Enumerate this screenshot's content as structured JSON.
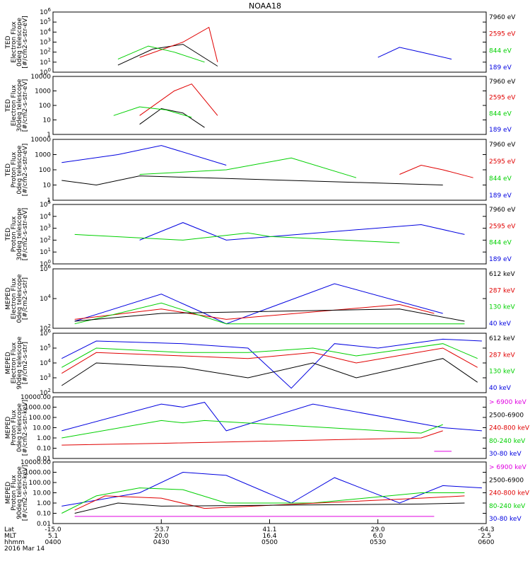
{
  "title": "NOAA18",
  "colors": {
    "black": "#000000",
    "red": "#e00000",
    "green": "#00d000",
    "blue": "#0000e0",
    "magenta": "#e000e0"
  },
  "chart_data": [
    {
      "type": "line",
      "ylabel": [
        "TED",
        "Electron Flux",
        "0deg telescope",
        "[#/cm2-s-str-eV]"
      ],
      "log_scale": true,
      "ylim": [
        1,
        1000000
      ],
      "yticks": [
        "10^0",
        "10^1",
        "10^2",
        "10^3",
        "10^4",
        "10^5",
        "10^6"
      ],
      "legend": [
        {
          "label": "7960 eV",
          "color": "black"
        },
        {
          "label": "2595 eV",
          "color": "red"
        },
        {
          "label": "844 eV",
          "color": "green"
        },
        {
          "label": "189 eV",
          "color": "blue"
        }
      ],
      "series": [
        {
          "color": "black",
          "x": [
            15,
            23,
            30,
            38
          ],
          "y": [
            5,
            200,
            600,
            4
          ]
        },
        {
          "color": "red",
          "x": [
            20,
            30,
            36,
            38
          ],
          "y": [
            30,
            1000,
            30000,
            10
          ]
        },
        {
          "color": "green",
          "x": [
            15,
            22,
            28,
            35
          ],
          "y": [
            20,
            400,
            100,
            10
          ]
        },
        {
          "color": "blue",
          "x": [
            75,
            80,
            85,
            92
          ],
          "y": [
            30,
            300,
            100,
            20
          ]
        }
      ]
    },
    {
      "type": "line",
      "ylabel": [
        "TED",
        "Electron Flux",
        "30deg telescope",
        "[#/cm2-s-str-eV]"
      ],
      "log_scale": true,
      "ylim": [
        1,
        10000
      ],
      "yticks": [
        "1",
        "10",
        "100",
        "1000",
        "10000"
      ],
      "legend": [
        {
          "label": "7960 eV",
          "color": "black"
        },
        {
          "label": "2595 eV",
          "color": "red"
        },
        {
          "label": "844 eV",
          "color": "green"
        },
        {
          "label": "189 eV",
          "color": "blue"
        }
      ],
      "series": [
        {
          "color": "black",
          "x": [
            20,
            25,
            30,
            35
          ],
          "y": [
            5,
            60,
            30,
            3
          ]
        },
        {
          "color": "red",
          "x": [
            20,
            28,
            32,
            38
          ],
          "y": [
            20,
            1000,
            3000,
            20
          ]
        },
        {
          "color": "green",
          "x": [
            14,
            20,
            26,
            32
          ],
          "y": [
            20,
            80,
            50,
            15
          ]
        }
      ]
    },
    {
      "type": "line",
      "ylabel": [
        "TED",
        "Proton Flux",
        "0deg telescope",
        "[#/cm2-s-str-eV]"
      ],
      "log_scale": true,
      "ylim": [
        1,
        10000
      ],
      "yticks": [
        "1",
        "10",
        "100",
        "1000",
        "10000"
      ],
      "legend": [
        {
          "label": "7960 eV",
          "color": "black"
        },
        {
          "label": "2595 eV",
          "color": "red"
        },
        {
          "label": "844 eV",
          "color": "green"
        },
        {
          "label": "189 eV",
          "color": "blue"
        }
      ],
      "series": [
        {
          "color": "blue",
          "x": [
            2,
            15,
            25,
            40
          ],
          "y": [
            300,
            1000,
            4000,
            200
          ]
        },
        {
          "color": "green",
          "x": [
            20,
            40,
            55,
            70
          ],
          "y": [
            50,
            100,
            600,
            30
          ]
        },
        {
          "color": "red",
          "x": [
            80,
            85,
            90,
            97
          ],
          "y": [
            50,
            200,
            100,
            30
          ]
        },
        {
          "color": "black",
          "x": [
            2,
            10,
            20,
            90
          ],
          "y": [
            20,
            10,
            40,
            10
          ]
        }
      ]
    },
    {
      "type": "line",
      "ylabel": [
        "TED",
        "Proton Flux",
        "30deg telescope",
        "[#/cm2-s-str-eV]"
      ],
      "log_scale": true,
      "ylim": [
        1,
        100000
      ],
      "yticks": [
        "10^0",
        "10^1",
        "10^2",
        "10^3",
        "10^4",
        "10^5"
      ],
      "legend": [
        {
          "label": "7960 eV",
          "color": "black"
        },
        {
          "label": "2595 eV",
          "color": "red"
        },
        {
          "label": "844 eV",
          "color": "green"
        },
        {
          "label": "189 eV",
          "color": "blue"
        }
      ],
      "series": [
        {
          "color": "blue",
          "x": [
            20,
            30,
            40,
            85,
            95
          ],
          "y": [
            100,
            3000,
            100,
            2000,
            300
          ]
        },
        {
          "color": "green",
          "x": [
            5,
            30,
            45,
            50,
            80
          ],
          "y": [
            300,
            100,
            400,
            200,
            60
          ]
        }
      ]
    },
    {
      "type": "line",
      "ylabel": [
        "MEPED",
        "Electron Flux",
        "0deg telescope",
        "[#/cm2-s-str]"
      ],
      "log_scale": true,
      "ylim": [
        100,
        1000000
      ],
      "yticks": [
        "10^2",
        "10^4",
        "10^6"
      ],
      "legend": [
        {
          "label": "612 keV",
          "color": "black"
        },
        {
          "label": "287 keV",
          "color": "red"
        },
        {
          "label": "130 keV",
          "color": "green"
        },
        {
          "label": "40 keV",
          "color": "blue"
        }
      ],
      "series": [
        {
          "color": "blue",
          "x": [
            5,
            25,
            35,
            40,
            65,
            90
          ],
          "y": [
            300,
            20000,
            1000,
            200,
            100000,
            1000
          ]
        },
        {
          "color": "red",
          "x": [
            5,
            25,
            40,
            80,
            88
          ],
          "y": [
            400,
            2000,
            400,
            4000,
            1000
          ]
        },
        {
          "color": "green",
          "x": [
            5,
            25,
            40,
            95
          ],
          "y": [
            200,
            5000,
            200,
            200
          ]
        },
        {
          "color": "black",
          "x": [
            5,
            25,
            80,
            95
          ],
          "y": [
            300,
            1000,
            2000,
            300
          ]
        }
      ]
    },
    {
      "type": "line",
      "ylabel": [
        "MEPED",
        "Electron Flux",
        "90deg telescope",
        "[#/cm2-s-str]"
      ],
      "log_scale": true,
      "ylim": [
        100,
        1000000
      ],
      "yticks": [
        "10^2",
        "10^3",
        "10^4",
        "10^5",
        "10^6"
      ],
      "legend": [
        {
          "label": "612 keV",
          "color": "black"
        },
        {
          "label": "287 keV",
          "color": "red"
        },
        {
          "label": "130 keV",
          "color": "green"
        },
        {
          "label": "40 keV",
          "color": "blue"
        }
      ],
      "series": [
        {
          "color": "blue",
          "x": [
            2,
            10,
            30,
            45,
            55,
            65,
            75,
            90,
            99
          ],
          "y": [
            20000,
            300000,
            200000,
            100000,
            200,
            200000,
            100000,
            400000,
            300000
          ]
        },
        {
          "color": "green",
          "x": [
            2,
            10,
            30,
            45,
            60,
            70,
            90,
            98
          ],
          "y": [
            5000,
            100000,
            50000,
            50000,
            100000,
            30000,
            200000,
            20000
          ]
        },
        {
          "color": "red",
          "x": [
            2,
            10,
            30,
            45,
            60,
            70,
            90,
            98
          ],
          "y": [
            2000,
            50000,
            30000,
            20000,
            50000,
            10000,
            100000,
            5000
          ]
        },
        {
          "color": "black",
          "x": [
            2,
            10,
            30,
            45,
            60,
            70,
            90,
            98
          ],
          "y": [
            300,
            10000,
            5000,
            1000,
            10000,
            1000,
            20000,
            500
          ]
        }
      ]
    },
    {
      "type": "line",
      "ylabel": [
        "MEPED",
        "Proton Flux",
        "0deg telescope",
        "[#/cm2-s-str-keV]"
      ],
      "log_scale": true,
      "ylim": [
        0.01,
        10000
      ],
      "yticks": [
        "0.01",
        "0.10",
        "1.00",
        "10.00",
        "100.00",
        "1000.00",
        "10000.00"
      ],
      "legend": [
        {
          "label": "> 6900 keV",
          "color": "magenta"
        },
        {
          "label": "2500-6900",
          "color": "black"
        },
        {
          "label": "240-800 keV",
          "color": "red"
        },
        {
          "label": "80-240 keV",
          "color": "green"
        },
        {
          "label": "30-80 keV",
          "color": "blue"
        }
      ],
      "series": [
        {
          "color": "blue",
          "x": [
            2,
            25,
            30,
            35,
            40,
            60,
            90,
            99
          ],
          "y": [
            5,
            2000,
            1000,
            3000,
            5,
            2000,
            10,
            5
          ]
        },
        {
          "color": "green",
          "x": [
            2,
            25,
            30,
            35,
            85,
            90
          ],
          "y": [
            1,
            50,
            30,
            50,
            3,
            20
          ]
        },
        {
          "color": "red",
          "x": [
            2,
            25,
            85,
            90
          ],
          "y": [
            0.2,
            0.3,
            1,
            5
          ]
        },
        {
          "color": "magenta",
          "x": [
            88,
            92
          ],
          "y": [
            0.05,
            0.05
          ]
        }
      ]
    },
    {
      "type": "line",
      "ylabel": [
        "MEPED",
        "Proton Flux",
        "90deg telescope",
        "[#/cm2-s-str-keV]"
      ],
      "log_scale": true,
      "ylim": [
        0.01,
        10000
      ],
      "yticks": [
        "0.01",
        "0.10",
        "1.00",
        "10.00",
        "100.00",
        "1000.00",
        "10000.00"
      ],
      "legend": [
        {
          "label": "> 6900 keV",
          "color": "magenta"
        },
        {
          "label": "2500-6900",
          "color": "black"
        },
        {
          "label": "240-800 keV",
          "color": "red"
        },
        {
          "label": "80-240 keV",
          "color": "green"
        },
        {
          "label": "30-80 keV",
          "color": "blue"
        }
      ],
      "series": [
        {
          "color": "blue",
          "x": [
            2,
            20,
            30,
            40,
            55,
            65,
            80,
            90,
            99
          ],
          "y": [
            0.5,
            10,
            1000,
            500,
            1,
            300,
            1,
            50,
            30
          ]
        },
        {
          "color": "green",
          "x": [
            2,
            10,
            20,
            30,
            40,
            60,
            85,
            95
          ],
          "y": [
            0.1,
            5,
            30,
            20,
            1,
            1,
            10,
            10
          ]
        },
        {
          "color": "red",
          "x": [
            5,
            12,
            25,
            35,
            85,
            95
          ],
          "y": [
            0.2,
            5,
            3,
            0.3,
            3,
            5
          ]
        },
        {
          "color": "black",
          "x": [
            5,
            15,
            25,
            85,
            95
          ],
          "y": [
            0.1,
            1,
            0.5,
            0.8,
            1
          ]
        },
        {
          "color": "magenta",
          "x": [
            5,
            88
          ],
          "y": [
            0.05,
            0.05
          ]
        }
      ]
    }
  ],
  "x_axis": {
    "rows": [
      {
        "label": "Lat",
        "values": [
          "-15.0",
          "-53.7",
          "41.1",
          "29.0",
          "-64.3"
        ]
      },
      {
        "label": "MLT",
        "values": [
          "5.1",
          "20.0",
          "16.4",
          "6.0",
          "2.5"
        ]
      },
      {
        "label": "hhmm",
        "values": [
          "0400",
          "0430",
          "0500",
          "0530",
          "0600"
        ]
      }
    ],
    "date": "2016 Mar 14"
  }
}
